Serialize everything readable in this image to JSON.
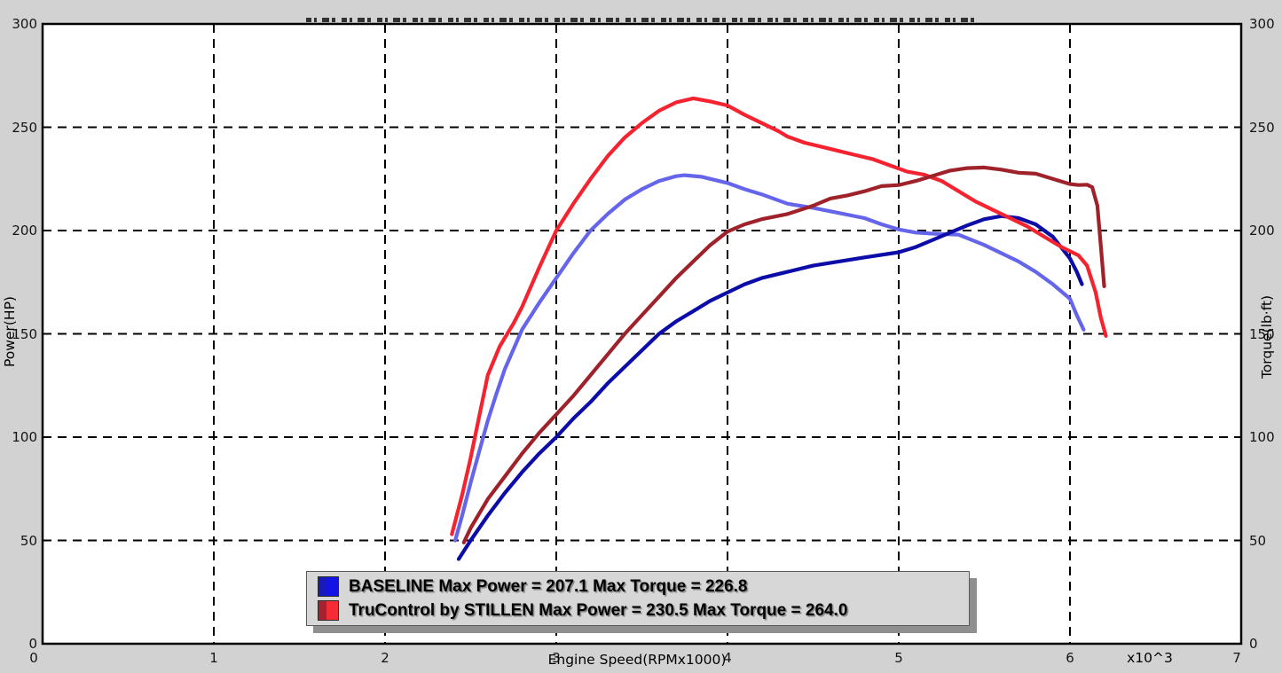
{
  "window": {
    "background_color": "#d2d2d2"
  },
  "chart_data": {
    "type": "line",
    "plot_background": "#ffffff",
    "grid": "dashed-black",
    "xlabel": "Engine Speed(RPMx1000)",
    "x_scale_label": "x10^3",
    "ylabel_left": "Power(HP)",
    "ylabel_right": "Torque(lb·ft)",
    "xlim": [
      0,
      7
    ],
    "ylim_left": [
      0,
      300
    ],
    "ylim_right": [
      0,
      300
    ],
    "x_ticks": [
      0,
      1,
      2,
      3,
      4,
      5,
      6,
      7
    ],
    "y_ticks_left": [
      0,
      50,
      100,
      150,
      200,
      250,
      300
    ],
    "y_ticks_right": [
      0,
      50,
      100,
      150,
      200,
      250,
      300
    ],
    "legend": {
      "position": "bottom-center",
      "rows": [
        {
          "swatch_colors": [
            "#1a1ab4",
            "#1313e6"
          ],
          "label": "BASELINE Max Power = 207.1 Max Torque = 226.8"
        },
        {
          "swatch_colors": [
            "#a3242e",
            "#f52b38"
          ],
          "label": "TruControl by STILLEN Max Power = 230.5 Max Torque = 264.0"
        }
      ]
    },
    "stats": {
      "baseline": {
        "max_power": 207.1,
        "max_torque": 226.8
      },
      "trucontrol_by_stillen": {
        "max_power": 230.5,
        "max_torque": 264.0
      }
    },
    "series": [
      {
        "id": "baseline-torque",
        "name": "BASELINE Torque",
        "axis": "right",
        "color": "#6565ec",
        "max": 226.8,
        "points": [
          [
            2.41,
            50
          ],
          [
            2.45,
            62
          ],
          [
            2.5,
            78
          ],
          [
            2.55,
            93
          ],
          [
            2.6,
            108
          ],
          [
            2.65,
            121
          ],
          [
            2.7,
            133
          ],
          [
            2.8,
            152
          ],
          [
            2.9,
            165
          ],
          [
            3.0,
            177
          ],
          [
            3.1,
            189
          ],
          [
            3.2,
            200
          ],
          [
            3.3,
            208
          ],
          [
            3.4,
            215
          ],
          [
            3.5,
            220
          ],
          [
            3.6,
            224
          ],
          [
            3.7,
            226.3
          ],
          [
            3.75,
            226.8
          ],
          [
            3.85,
            226
          ],
          [
            4.0,
            223
          ],
          [
            4.1,
            220
          ],
          [
            4.2,
            217.5
          ],
          [
            4.35,
            213
          ],
          [
            4.5,
            211
          ],
          [
            4.65,
            208.5
          ],
          [
            4.8,
            206
          ],
          [
            4.9,
            203
          ],
          [
            5.0,
            200.5
          ],
          [
            5.1,
            199
          ],
          [
            5.2,
            198.5
          ],
          [
            5.35,
            198
          ],
          [
            5.5,
            193
          ],
          [
            5.6,
            189
          ],
          [
            5.7,
            185
          ],
          [
            5.8,
            180
          ],
          [
            5.9,
            174
          ],
          [
            6.0,
            167
          ],
          [
            6.04,
            159
          ],
          [
            6.08,
            152
          ]
        ]
      },
      {
        "id": "baseline-power",
        "name": "BASELINE Power",
        "axis": "left",
        "color": "#0c0ca8",
        "max": 207.1,
        "points": [
          [
            2.43,
            41
          ],
          [
            2.5,
            50
          ],
          [
            2.6,
            62
          ],
          [
            2.7,
            73
          ],
          [
            2.8,
            83
          ],
          [
            2.9,
            92
          ],
          [
            3.0,
            100
          ],
          [
            3.1,
            109
          ],
          [
            3.2,
            117
          ],
          [
            3.3,
            126
          ],
          [
            3.4,
            134
          ],
          [
            3.5,
            142
          ],
          [
            3.6,
            150
          ],
          [
            3.7,
            156
          ],
          [
            3.8,
            161
          ],
          [
            3.9,
            166
          ],
          [
            4.0,
            170
          ],
          [
            4.1,
            174
          ],
          [
            4.2,
            177
          ],
          [
            4.35,
            180
          ],
          [
            4.5,
            183
          ],
          [
            4.65,
            185
          ],
          [
            4.8,
            187
          ],
          [
            5.0,
            189.5
          ],
          [
            5.1,
            192
          ],
          [
            5.2,
            195.5
          ],
          [
            5.3,
            199
          ],
          [
            5.4,
            202.5
          ],
          [
            5.5,
            205.5
          ],
          [
            5.6,
            207
          ],
          [
            5.7,
            206
          ],
          [
            5.8,
            203
          ],
          [
            5.9,
            197
          ],
          [
            6.0,
            186.5
          ],
          [
            6.04,
            180
          ],
          [
            6.07,
            174
          ]
        ]
      },
      {
        "id": "trucontrol-torque",
        "name": "TruControl by STILLEN Torque",
        "axis": "right",
        "color": "#f5232f",
        "max": 264.0,
        "points": [
          [
            2.39,
            53
          ],
          [
            2.45,
            72
          ],
          [
            2.5,
            90
          ],
          [
            2.55,
            110
          ],
          [
            2.6,
            130
          ],
          [
            2.67,
            144
          ],
          [
            2.75,
            155
          ],
          [
            2.8,
            163
          ],
          [
            2.9,
            182
          ],
          [
            3.0,
            200
          ],
          [
            3.1,
            213
          ],
          [
            3.2,
            225
          ],
          [
            3.3,
            236
          ],
          [
            3.4,
            245
          ],
          [
            3.5,
            252
          ],
          [
            3.6,
            258
          ],
          [
            3.7,
            262
          ],
          [
            3.8,
            264
          ],
          [
            3.9,
            262.5
          ],
          [
            4.0,
            260.5
          ],
          [
            4.1,
            256
          ],
          [
            4.2,
            252
          ],
          [
            4.3,
            248
          ],
          [
            4.35,
            245.5
          ],
          [
            4.45,
            242.5
          ],
          [
            4.55,
            240.5
          ],
          [
            4.65,
            238.5
          ],
          [
            4.75,
            236.5
          ],
          [
            4.85,
            234.5
          ],
          [
            4.95,
            231.5
          ],
          [
            5.05,
            228.5
          ],
          [
            5.15,
            227
          ],
          [
            5.25,
            224
          ],
          [
            5.35,
            219
          ],
          [
            5.45,
            214
          ],
          [
            5.55,
            210
          ],
          [
            5.65,
            206
          ],
          [
            5.75,
            202
          ],
          [
            5.85,
            197
          ],
          [
            5.95,
            192
          ],
          [
            6.05,
            188
          ],
          [
            6.1,
            183
          ],
          [
            6.15,
            170
          ],
          [
            6.18,
            158
          ],
          [
            6.21,
            149
          ]
        ]
      },
      {
        "id": "trucontrol-power",
        "name": "TruControl by STILLEN Power",
        "axis": "left",
        "color": "#9f222b",
        "max": 230.5,
        "points": [
          [
            2.46,
            49
          ],
          [
            2.5,
            56
          ],
          [
            2.6,
            70
          ],
          [
            2.7,
            81
          ],
          [
            2.8,
            92
          ],
          [
            2.9,
            102
          ],
          [
            3.0,
            111
          ],
          [
            3.1,
            120
          ],
          [
            3.2,
            130
          ],
          [
            3.3,
            140
          ],
          [
            3.4,
            150
          ],
          [
            3.5,
            159
          ],
          [
            3.6,
            168
          ],
          [
            3.7,
            177
          ],
          [
            3.8,
            185
          ],
          [
            3.9,
            193
          ],
          [
            4.0,
            199.5
          ],
          [
            4.1,
            203
          ],
          [
            4.2,
            205.5
          ],
          [
            4.35,
            208
          ],
          [
            4.5,
            212
          ],
          [
            4.6,
            215.5
          ],
          [
            4.7,
            217
          ],
          [
            4.8,
            219
          ],
          [
            4.9,
            221.5
          ],
          [
            5.0,
            222
          ],
          [
            5.1,
            224
          ],
          [
            5.2,
            226.5
          ],
          [
            5.3,
            229
          ],
          [
            5.4,
            230.2
          ],
          [
            5.5,
            230.5
          ],
          [
            5.6,
            229.5
          ],
          [
            5.7,
            228
          ],
          [
            5.8,
            227.5
          ],
          [
            5.9,
            225
          ],
          [
            6.0,
            222.5
          ],
          [
            6.05,
            222
          ],
          [
            6.1,
            222.2
          ],
          [
            6.13,
            221
          ],
          [
            6.16,
            212
          ],
          [
            6.18,
            193
          ],
          [
            6.2,
            173
          ]
        ]
      }
    ]
  }
}
